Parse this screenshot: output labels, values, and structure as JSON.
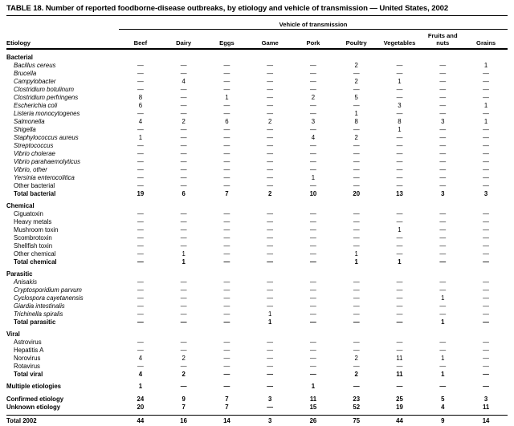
{
  "title": "TABLE 18. Number of reported foodborne-disease outbreaks, by etiology and vehicle of transmission — United States, 2002",
  "colors": {
    "text": "#000000",
    "background": "#ffffff",
    "rule": "#000000"
  },
  "table": {
    "group_header": "Vehicle of transmission",
    "etiology_header": "Etiology",
    "columns": [
      "Beef",
      "Dairy",
      "Eggs",
      "Game",
      "Pork",
      "Poultry",
      "Vegetables",
      "Fruits and nuts",
      "Grains"
    ],
    "sections": [
      {
        "name": "Bacterial",
        "rows": [
          {
            "label": "Bacillus cereus",
            "style": "italic",
            "values": [
              "—",
              "—",
              "—",
              "—",
              "—",
              "2",
              "—",
              "—",
              "1"
            ]
          },
          {
            "label": "Brucella",
            "style": "italic",
            "values": [
              "—",
              "—",
              "—",
              "—",
              "—",
              "—",
              "—",
              "—",
              "—"
            ]
          },
          {
            "label": "Campylobacter",
            "style": "italic",
            "values": [
              "—",
              "4",
              "—",
              "—",
              "—",
              "2",
              "1",
              "—",
              "—"
            ]
          },
          {
            "label": "Clostridium botulinum",
            "style": "italic",
            "values": [
              "—",
              "—",
              "—",
              "—",
              "—",
              "—",
              "—",
              "—",
              "—"
            ]
          },
          {
            "label": "Clostridium perfringens",
            "style": "italic",
            "values": [
              "8",
              "—",
              "1",
              "—",
              "2",
              "5",
              "—",
              "—",
              "—"
            ]
          },
          {
            "label": "Escherichia coli",
            "style": "italic",
            "values": [
              "6",
              "—",
              "—",
              "—",
              "—",
              "—",
              "3",
              "—",
              "1"
            ]
          },
          {
            "label": "Listeria monocytogenes",
            "style": "italic",
            "values": [
              "—",
              "—",
              "—",
              "—",
              "—",
              "1",
              "—",
              "—",
              "—"
            ]
          },
          {
            "label": "Salmonella",
            "style": "italic",
            "values": [
              "4",
              "2",
              "6",
              "2",
              "3",
              "8",
              "8",
              "3",
              "1"
            ]
          },
          {
            "label": "Shigella",
            "style": "italic",
            "values": [
              "—",
              "—",
              "—",
              "—",
              "—",
              "—",
              "1",
              "—",
              "—"
            ]
          },
          {
            "label": "Staphylococcus aureus",
            "style": "italic",
            "values": [
              "1",
              "—",
              "—",
              "—",
              "4",
              "2",
              "—",
              "—",
              "—"
            ]
          },
          {
            "label": "Streptococcus",
            "style": "italic",
            "values": [
              "—",
              "—",
              "—",
              "—",
              "—",
              "—",
              "—",
              "—",
              "—"
            ]
          },
          {
            "label": "Vibrio cholerae",
            "style": "italic",
            "values": [
              "—",
              "—",
              "—",
              "—",
              "—",
              "—",
              "—",
              "—",
              "—"
            ]
          },
          {
            "label": "Vibrio parahaemolyticus",
            "style": "italic",
            "values": [
              "—",
              "—",
              "—",
              "—",
              "—",
              "—",
              "—",
              "—",
              "—"
            ]
          },
          {
            "label": "Vibrio, other",
            "style": "italic",
            "values": [
              "—",
              "—",
              "—",
              "—",
              "—",
              "—",
              "—",
              "—",
              "—"
            ]
          },
          {
            "label": "Yersinia enterocolitica",
            "style": "italic",
            "values": [
              "—",
              "—",
              "—",
              "—",
              "1",
              "—",
              "—",
              "—",
              "—"
            ]
          },
          {
            "label": "Other bacterial",
            "style": "plain",
            "values": [
              "—",
              "—",
              "—",
              "—",
              "—",
              "—",
              "—",
              "—",
              "—"
            ]
          },
          {
            "label": "Total bacterial",
            "style": "total",
            "values": [
              "19",
              "6",
              "7",
              "2",
              "10",
              "20",
              "13",
              "3",
              "3"
            ]
          }
        ]
      },
      {
        "name": "Chemical",
        "rows": [
          {
            "label": "Ciguatoxin",
            "style": "plain",
            "values": [
              "—",
              "—",
              "—",
              "—",
              "—",
              "—",
              "—",
              "—",
              "—"
            ]
          },
          {
            "label": "Heavy metals",
            "style": "plain",
            "values": [
              "—",
              "—",
              "—",
              "—",
              "—",
              "—",
              "—",
              "—",
              "—"
            ]
          },
          {
            "label": "Mushroom toxin",
            "style": "plain",
            "values": [
              "—",
              "—",
              "—",
              "—",
              "—",
              "—",
              "1",
              "—",
              "—"
            ]
          },
          {
            "label": "Scombrotoxin",
            "style": "plain",
            "values": [
              "—",
              "—",
              "—",
              "—",
              "—",
              "—",
              "—",
              "—",
              "—"
            ]
          },
          {
            "label": "Shellfish toxin",
            "style": "plain",
            "values": [
              "—",
              "—",
              "—",
              "—",
              "—",
              "—",
              "—",
              "—",
              "—"
            ]
          },
          {
            "label": "Other chemical",
            "style": "plain",
            "values": [
              "—",
              "1",
              "—",
              "—",
              "—",
              "1",
              "—",
              "—",
              "—"
            ]
          },
          {
            "label": "Total chemical",
            "style": "total",
            "values": [
              "—",
              "1",
              "—",
              "—",
              "—",
              "1",
              "1",
              "—",
              "—"
            ]
          }
        ]
      },
      {
        "name": "Parasitic",
        "rows": [
          {
            "label": "Anisakis",
            "style": "italic",
            "values": [
              "—",
              "—",
              "—",
              "—",
              "—",
              "—",
              "—",
              "—",
              "—"
            ]
          },
          {
            "label": "Cryptosporidium parvum",
            "style": "italic",
            "values": [
              "—",
              "—",
              "—",
              "—",
              "—",
              "—",
              "—",
              "—",
              "—"
            ]
          },
          {
            "label": "Cyclospora cayetanensis",
            "style": "italic",
            "values": [
              "—",
              "—",
              "—",
              "—",
              "—",
              "—",
              "—",
              "1",
              "—"
            ]
          },
          {
            "label": "Giardia intestinalis",
            "style": "italic",
            "values": [
              "—",
              "—",
              "—",
              "—",
              "—",
              "—",
              "—",
              "—",
              "—"
            ]
          },
          {
            "label": "Trichinella spiralis",
            "style": "italic",
            "values": [
              "—",
              "—",
              "—",
              "1",
              "—",
              "—",
              "—",
              "—",
              "—"
            ]
          },
          {
            "label": "Total parasitic",
            "style": "total",
            "values": [
              "—",
              "—",
              "—",
              "1",
              "—",
              "—",
              "—",
              "1",
              "—"
            ]
          }
        ]
      },
      {
        "name": "Viral",
        "rows": [
          {
            "label": "Astrovirus",
            "style": "plain",
            "values": [
              "—",
              "—",
              "—",
              "—",
              "—",
              "—",
              "—",
              "—",
              "—"
            ]
          },
          {
            "label": "Hepatitis A",
            "style": "plain",
            "values": [
              "—",
              "—",
              "—",
              "—",
              "—",
              "—",
              "—",
              "—",
              "—"
            ]
          },
          {
            "label": "Norovirus",
            "style": "plain",
            "values": [
              "4",
              "2",
              "—",
              "—",
              "—",
              "2",
              "11",
              "1",
              "—"
            ]
          },
          {
            "label": "Rotavirus",
            "style": "plain",
            "values": [
              "—",
              "—",
              "—",
              "—",
              "—",
              "—",
              "—",
              "—",
              "—"
            ]
          },
          {
            "label": "Total viral",
            "style": "total",
            "values": [
              "4",
              "2",
              "—",
              "—",
              "—",
              "2",
              "11",
              "1",
              "—"
            ]
          }
        ]
      }
    ],
    "footer_rows": [
      {
        "label": "Multiple etiologies",
        "kind": "multiple",
        "values": [
          "1",
          "—",
          "—",
          "—",
          "1",
          "—",
          "—",
          "—",
          "—"
        ]
      },
      {
        "label": "Confirmed etiology",
        "kind": "confirmed",
        "values": [
          "24",
          "9",
          "7",
          "3",
          "11",
          "23",
          "25",
          "5",
          "3"
        ]
      },
      {
        "label": "Unknown etiology",
        "kind": "unknown",
        "values": [
          "20",
          "7",
          "7",
          "—",
          "15",
          "52",
          "19",
          "4",
          "11"
        ]
      },
      {
        "label": "Total 2002",
        "kind": "grand-total",
        "values": [
          "44",
          "16",
          "14",
          "3",
          "26",
          "75",
          "44",
          "9",
          "14"
        ]
      }
    ]
  }
}
